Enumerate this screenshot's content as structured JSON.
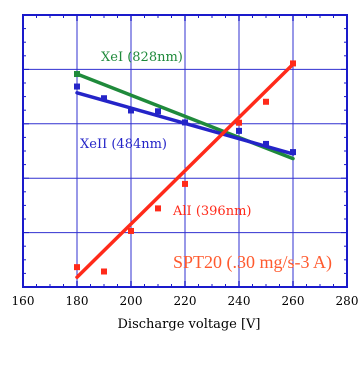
{
  "chart_data": {
    "type": "scatter",
    "xlabel": "Discharge voltage  [V]",
    "ylabel": "",
    "xlim": [
      160,
      280
    ],
    "ylim": [
      0,
      1
    ],
    "x_ticks": [
      "160",
      "180",
      "200",
      "220",
      "240",
      "260",
      "280"
    ],
    "grid": true,
    "annotations": [
      {
        "text": "SPT20 (.30 mg/s-3 A)",
        "color": "#ff5a2e"
      }
    ],
    "series": [
      {
        "name": "XeI (828nm)",
        "color": "#1f8a3b",
        "points": [
          [
            180,
            0.783
          ]
        ],
        "fit": [
          [
            180,
            0.783
          ],
          [
            260,
            0.472
          ]
        ]
      },
      {
        "name": "XeII (484nm)",
        "color": "#2424c8",
        "points": [
          [
            180,
            0.737
          ],
          [
            190,
            0.694
          ],
          [
            200,
            0.649
          ],
          [
            210,
            0.646
          ],
          [
            220,
            0.605
          ],
          [
            240,
            0.574
          ],
          [
            250,
            0.526
          ],
          [
            260,
            0.496
          ]
        ],
        "fit": [
          [
            180,
            0.714
          ],
          [
            260,
            0.489
          ]
        ]
      },
      {
        "name": "AlI (396nm)",
        "color": "#ff2a1a",
        "points": [
          [
            180,
            0.073
          ],
          [
            190,
            0.057
          ],
          [
            200,
            0.206
          ],
          [
            210,
            0.289
          ],
          [
            220,
            0.379
          ],
          [
            240,
            0.604
          ],
          [
            250,
            0.681
          ],
          [
            260,
            0.822
          ]
        ],
        "fit": [
          [
            180,
            0.036
          ],
          [
            260,
            0.819
          ]
        ]
      }
    ]
  }
}
